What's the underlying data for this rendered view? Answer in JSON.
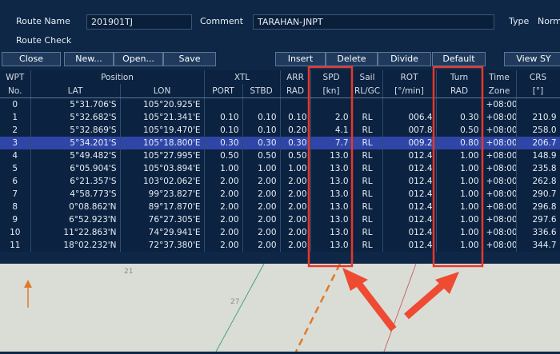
{
  "header": {
    "route_name_label": "Route Name",
    "route_name": "201901TJ",
    "comment_label": "Comment",
    "comment": "TARAHAN-JNPT",
    "type_label": "Type",
    "type": "Norm",
    "route_check": "Route Check"
  },
  "buttons": [
    "Close",
    "New...",
    "Open...",
    "Save",
    "Insert",
    "Delete",
    "Divide",
    "Default",
    "View SY"
  ],
  "table": {
    "header_top": [
      "WPT",
      "Position",
      "XTL",
      "ARR",
      "SPD",
      "Sail",
      "ROT",
      "Turn",
      "Time",
      "CRS"
    ],
    "header_bottom": [
      "No.",
      "LAT",
      "LON",
      "PORT",
      "STBD",
      "RAD",
      "[kn]",
      "RL/GC",
      "[°/min]",
      "RAD",
      "Zone",
      "[°]"
    ],
    "rows": [
      [
        "0",
        "5°31.706'S",
        "105°20.925'E",
        null,
        null,
        null,
        null,
        null,
        null,
        null,
        "+08:00",
        null
      ],
      [
        "1",
        "5°32.682'S",
        "105°21.341'E",
        "0.10",
        "0.10",
        "0.10",
        "2.0",
        "RL",
        "006.4",
        "0.30",
        "+08:00",
        "210.9"
      ],
      [
        "2",
        "5°32.869'S",
        "105°19.470'E",
        "0.10",
        "0.10",
        "0.20",
        "4.1",
        "RL",
        "007.8",
        "0.50",
        "+08:00",
        "258.0"
      ],
      [
        "3",
        "5°34.201'S",
        "105°18.800'E",
        "0.30",
        "0.30",
        "0.30",
        "7.7",
        "RL",
        "009.2",
        "0.80",
        "+08:00",
        "206.7"
      ],
      [
        "4",
        "5°49.482'S",
        "105°27.995'E",
        "0.50",
        "0.50",
        "0.50",
        "13.0",
        "RL",
        "012.4",
        "1.00",
        "+08:00",
        "148.9"
      ],
      [
        "5",
        "6°05.904'S",
        "105°03.894'E",
        "1.00",
        "1.00",
        "1.00",
        "13.0",
        "RL",
        "012.4",
        "1.00",
        "+08:00",
        "235.8"
      ],
      [
        "6",
        "6°21.357'S",
        "103°02.062'E",
        "2.00",
        "2.00",
        "2.00",
        "13.0",
        "RL",
        "012.4",
        "1.00",
        "+08:00",
        "262.8"
      ],
      [
        "7",
        "4°58.773'S",
        "99°23.827'E",
        "2.00",
        "2.00",
        "2.00",
        "13.0",
        "RL",
        "012.4",
        "1.00",
        "+08:00",
        "290.7"
      ],
      [
        "8",
        "0°08.862'N",
        "89°17.870'E",
        "2.00",
        "2.00",
        "2.00",
        "13.0",
        "RL",
        "012.4",
        "1.00",
        "+08:00",
        "296.8"
      ],
      [
        "9",
        "6°52.923'N",
        "76°27.305'E",
        "2.00",
        "2.00",
        "2.00",
        "13.0",
        "RL",
        "012.4",
        "1.00",
        "+08:00",
        "297.6"
      ],
      [
        "10",
        "11°22.863'N",
        "74°29.941'E",
        "2.00",
        "2.00",
        "2.00",
        "13.0",
        "RL",
        "012.4",
        "1.00",
        "+08:00",
        "336.6"
      ],
      [
        "11",
        "18°02.232'N",
        "72°37.380'E",
        "2.00",
        "2.00",
        "2.00",
        "13.0",
        "RL",
        "012.4",
        "1.00",
        "+08:00",
        "344.7"
      ]
    ]
  },
  "map_labels": [
    "21",
    "27"
  ]
}
